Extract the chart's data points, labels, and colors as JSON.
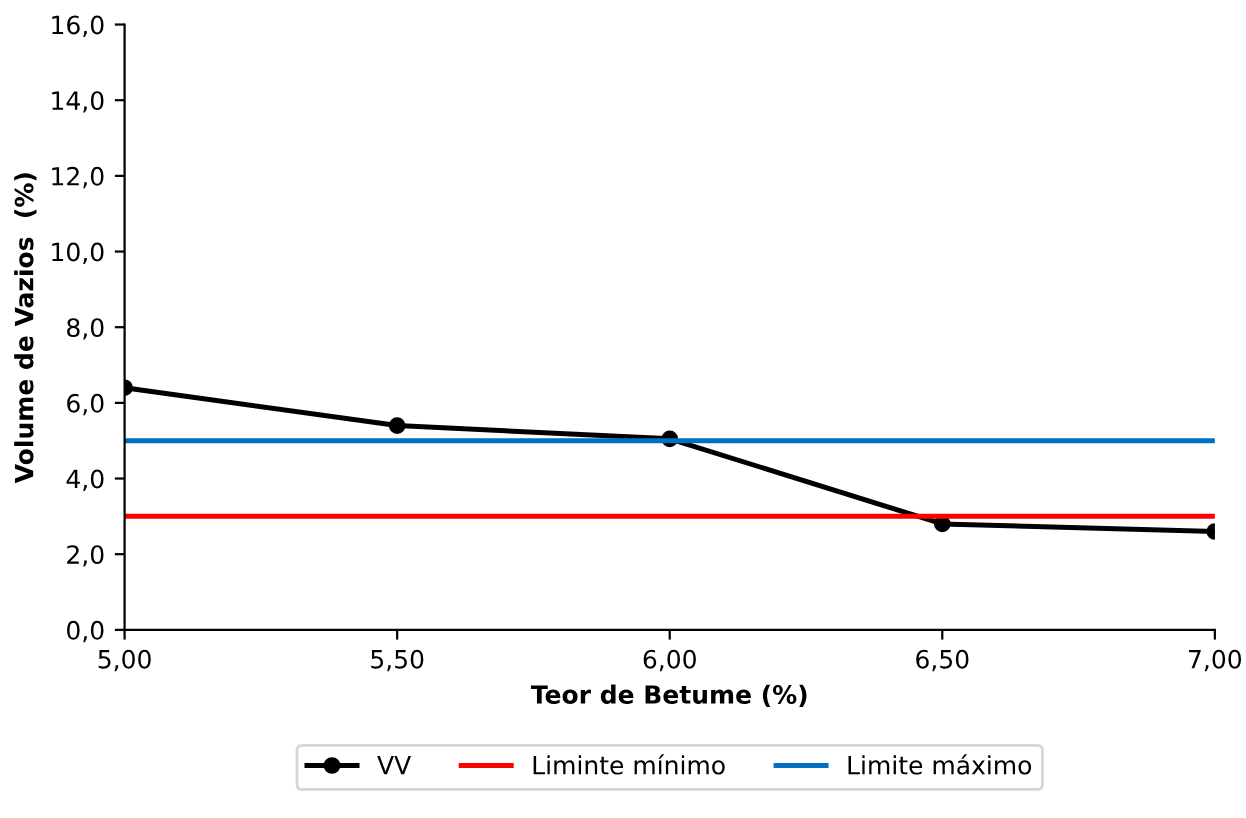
{
  "chart_data": {
    "type": "line",
    "xlabel": "Teor de Betume (%)",
    "ylabel": "Volume de Vazios  (%)",
    "x": [
      5.0,
      5.5,
      6.0,
      6.5,
      7.0
    ],
    "series": [
      {
        "name": "VV",
        "color": "#000000",
        "values": [
          6.4,
          5.4,
          5.05,
          2.8,
          2.6
        ]
      }
    ],
    "marker": "circle",
    "line_style": "solid",
    "ref_lines": [
      {
        "axis": "y",
        "value": 3,
        "label": "Liminte mínimo",
        "color": "#ff0000"
      },
      {
        "axis": "y",
        "value": 5,
        "label": "Limite máximo",
        "color": "#0070c0"
      }
    ],
    "xlim": [
      5.0,
      7.0
    ],
    "xticks": [
      {
        "value": 5.0,
        "label": "5,00"
      },
      {
        "value": 5.5,
        "label": "5,50"
      },
      {
        "value": 6.0,
        "label": "6,00"
      },
      {
        "value": 6.5,
        "label": "6,50"
      },
      {
        "value": 7.0,
        "label": "7,00"
      }
    ],
    "ylim": [
      0,
      16
    ],
    "yticks": [
      {
        "value": 0,
        "label": "0,0"
      },
      {
        "value": 2,
        "label": "2,0"
      },
      {
        "value": 4,
        "label": "4,0"
      },
      {
        "value": 6,
        "label": "6,0"
      },
      {
        "value": 8,
        "label": "8,0"
      },
      {
        "value": 10,
        "label": "10,0"
      },
      {
        "value": 12,
        "label": "12,0"
      },
      {
        "value": 14,
        "label": "14,0"
      },
      {
        "value": 16,
        "label": "16,0"
      }
    ],
    "grid": false,
    "legend": "bottom"
  }
}
